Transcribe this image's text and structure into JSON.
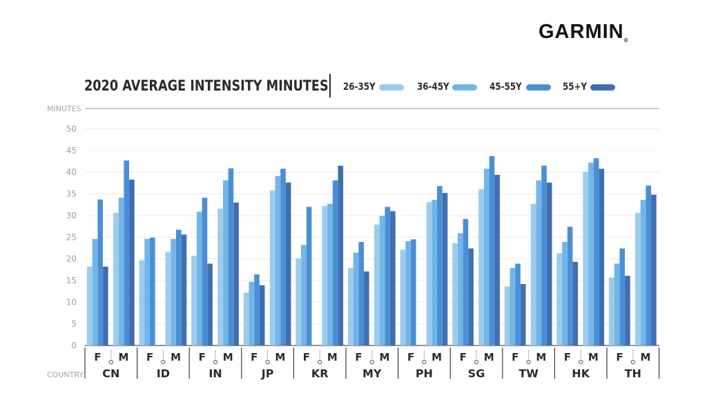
{
  "logo": {
    "text": "GARMIN",
    "mark": "®"
  },
  "chart_data": {
    "type": "bar",
    "title": "2020 AVERAGE INTENSITY MINUTES",
    "ylabel": "MINUTES",
    "xlabel": "COUNTRY",
    "ylim": [
      0,
      50
    ],
    "yticks": [
      0,
      5,
      10,
      15,
      20,
      25,
      30,
      35,
      40,
      45,
      50
    ],
    "grid": true,
    "legend": "top",
    "sex_labels": [
      "F",
      "M"
    ],
    "countries": [
      "CN",
      "ID",
      "IN",
      "JP",
      "KR",
      "MY",
      "PH",
      "SG",
      "TW",
      "HK",
      "TH"
    ],
    "series": [
      {
        "name": "26-35Y",
        "color": "#9ccbee",
        "F": [
          18.2,
          19.7,
          20.7,
          12.2,
          20.1,
          17.9,
          22.1,
          23.6,
          13.6,
          21.3,
          15.7
        ],
        "M": [
          30.6,
          21.6,
          31.6,
          35.8,
          32.2,
          27.9,
          33.1,
          36.1,
          32.7,
          40.1,
          30.6
        ]
      },
      {
        "name": "36-45Y",
        "color": "#72b5e8",
        "F": [
          24.6,
          24.6,
          30.9,
          14.7,
          23.2,
          21.4,
          24.1,
          25.9,
          17.9,
          23.9,
          18.9
        ],
        "M": [
          34.1,
          24.6,
          38.1,
          39.1,
          32.7,
          29.9,
          33.6,
          40.8,
          38.1,
          42.2,
          33.6
        ]
      },
      {
        "name": "45-55Y",
        "color": "#4a8fd6",
        "F": [
          33.7,
          24.9,
          34.1,
          16.4,
          32.0,
          23.9,
          24.5,
          29.2,
          18.9,
          27.4,
          22.4
        ],
        "M": [
          42.7,
          26.7,
          40.9,
          40.8,
          38.1,
          32.0,
          36.8,
          43.7,
          41.5,
          43.2,
          36.9
        ]
      },
      {
        "name": "55+Y",
        "color": "#3f6fb0",
        "F": [
          18.2,
          null,
          18.9,
          13.9,
          null,
          17.1,
          null,
          22.4,
          14.2,
          19.3,
          16.1
        ],
        "M": [
          38.3,
          25.6,
          33.0,
          37.6,
          41.5,
          31.0,
          35.2,
          39.4,
          37.6,
          40.8,
          34.8
        ]
      }
    ]
  }
}
